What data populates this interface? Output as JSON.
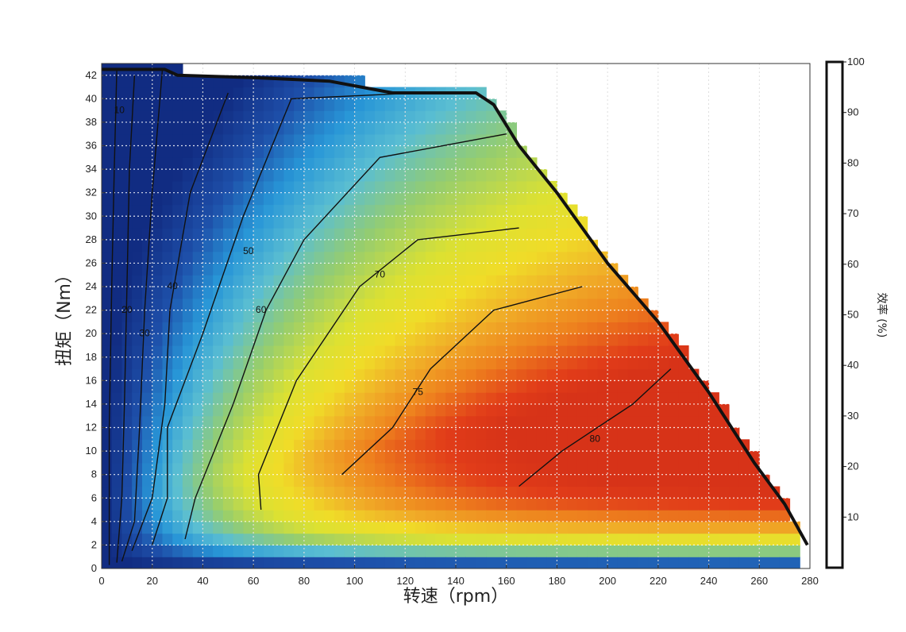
{
  "chart_data": {
    "type": "heatmap",
    "title": "",
    "xlabel": "转速（rpm）",
    "ylabel": "扭矩（Nm）",
    "xlim": [
      0,
      280
    ],
    "ylim": [
      0,
      43
    ],
    "x_ticks": [
      0,
      20,
      40,
      60,
      80,
      100,
      120,
      140,
      160,
      180,
      200,
      220,
      240,
      260,
      280
    ],
    "y_ticks": [
      0,
      2,
      4,
      6,
      8,
      10,
      12,
      14,
      16,
      18,
      20,
      22,
      24,
      26,
      28,
      30,
      32,
      34,
      36,
      38,
      40,
      42
    ],
    "grid": true,
    "colorbar": {
      "label": "效率 (%)",
      "range": [
        0,
        100
      ],
      "ticks": [
        10,
        20,
        30,
        40,
        50,
        60,
        70,
        80,
        90,
        100
      ]
    },
    "max_torque_envelope": [
      [
        0,
        42.5
      ],
      [
        25,
        42.5
      ],
      [
        30,
        42
      ],
      [
        60,
        41.8
      ],
      [
        90,
        41.5
      ],
      [
        115,
        40.5
      ],
      [
        148,
        40.5
      ],
      [
        155,
        39.5
      ],
      [
        165,
        36
      ],
      [
        180,
        32
      ],
      [
        200,
        26
      ],
      [
        220,
        21
      ],
      [
        240,
        15
      ],
      [
        258,
        9
      ],
      [
        270,
        5.5
      ],
      [
        279,
        2
      ]
    ],
    "contours": [
      {
        "level": 10,
        "points": [
          [
            3,
            0.3
          ],
          [
            3,
            12
          ],
          [
            4,
            24
          ],
          [
            5,
            34
          ],
          [
            6,
            42.5
          ]
        ],
        "label_at": [
          7,
          39
        ]
      },
      {
        "level": 20,
        "points": [
          [
            6,
            0.5
          ],
          [
            8,
            6
          ],
          [
            9,
            14
          ],
          [
            10,
            24
          ],
          [
            11,
            34
          ],
          [
            13,
            42
          ]
        ],
        "label_at": [
          10,
          22
        ]
      },
      {
        "level": 30,
        "points": [
          [
            8,
            0.6
          ],
          [
            13,
            4
          ],
          [
            15,
            12
          ],
          [
            17,
            22
          ],
          [
            20,
            32
          ],
          [
            24,
            42.5
          ]
        ],
        "label_at": [
          17,
          20
        ]
      },
      {
        "level": 40,
        "points": [
          [
            12,
            1.5
          ],
          [
            20,
            6
          ],
          [
            25,
            14
          ],
          [
            27,
            22
          ],
          [
            35,
            32
          ],
          [
            50,
            40.5
          ]
        ],
        "label_at": [
          28,
          24
        ]
      },
      {
        "level": 50,
        "points": [
          [
            20,
            2
          ],
          [
            26,
            6
          ],
          [
            26,
            12
          ],
          [
            40,
            20
          ],
          [
            56,
            30
          ],
          [
            75,
            40
          ],
          [
            125,
            40.5
          ]
        ],
        "label_at": [
          58,
          27
        ]
      },
      {
        "level": 60,
        "points": [
          [
            33,
            2.5
          ],
          [
            37,
            6
          ],
          [
            52,
            14
          ],
          [
            65,
            22
          ],
          [
            80,
            28
          ],
          [
            110,
            35
          ],
          [
            160,
            37
          ]
        ],
        "label_at": [
          63,
          22
        ]
      },
      {
        "level": 70,
        "points": [
          [
            63,
            5
          ],
          [
            62,
            8
          ],
          [
            77,
            16
          ],
          [
            102,
            24
          ],
          [
            125,
            28
          ],
          [
            165,
            29
          ]
        ],
        "label_at": [
          110,
          25
        ]
      },
      {
        "level": 75,
        "points": [
          [
            95,
            8
          ],
          [
            115,
            12
          ],
          [
            130,
            17
          ],
          [
            155,
            22
          ],
          [
            190,
            24
          ]
        ],
        "label_at": [
          125,
          15
        ]
      },
      {
        "level": 80,
        "points": [
          [
            165,
            7
          ],
          [
            182,
            10
          ],
          [
            210,
            14
          ],
          [
            225,
            17
          ]
        ],
        "label_at": [
          195,
          11
        ]
      }
    ],
    "contour_labels": [
      "10",
      "20",
      "30",
      "40",
      "50",
      "60",
      "70",
      "75",
      "80"
    ]
  }
}
